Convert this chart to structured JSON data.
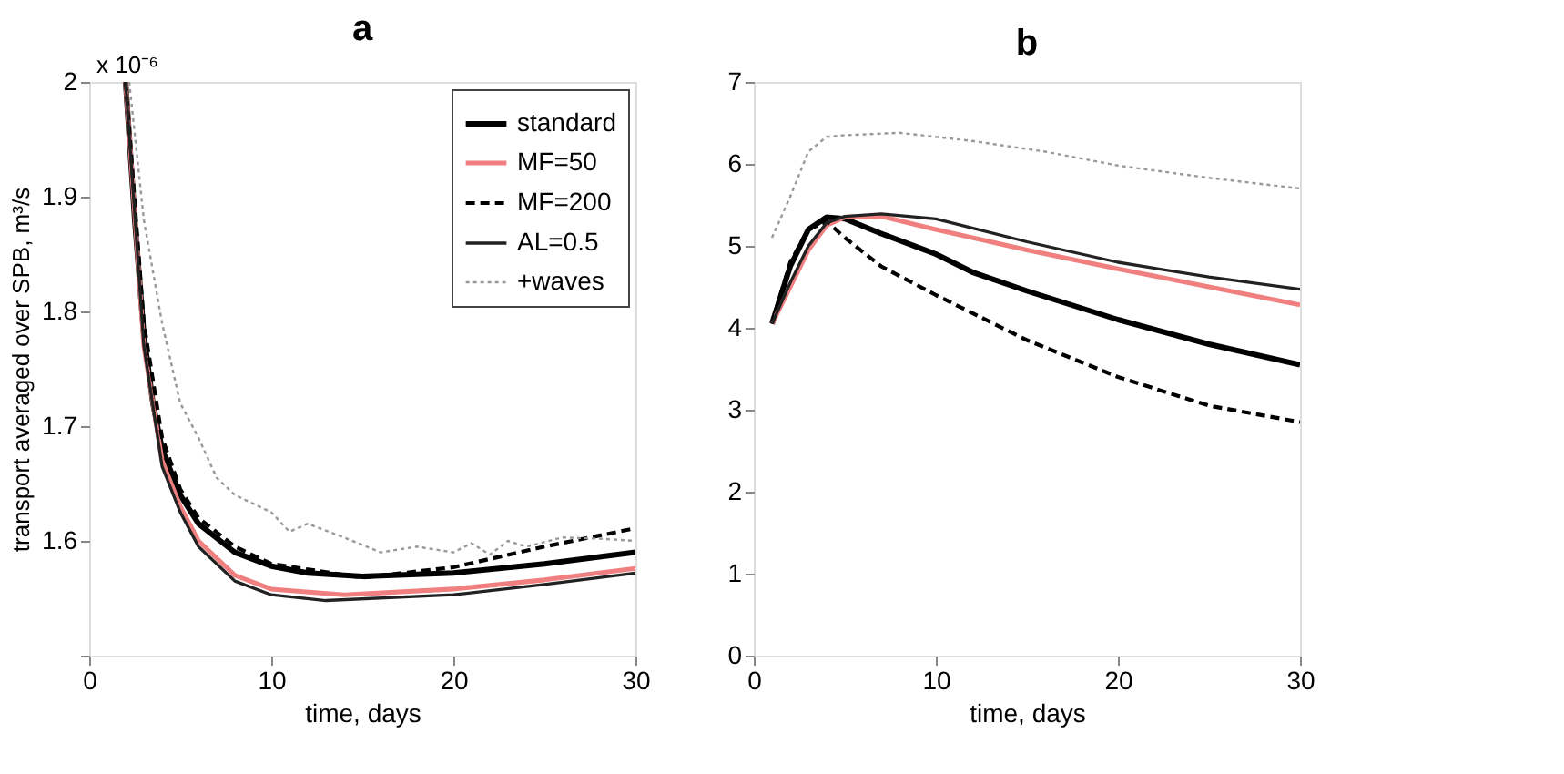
{
  "chart_data": [
    {
      "type": "line",
      "title": "a",
      "xlabel": "time, days",
      "ylabel": "transport averaged over SPB, m³/s",
      "annotations": [
        "x 10⁻⁶"
      ],
      "xlim": [
        0,
        30
      ],
      "xticks": [
        0,
        10,
        20,
        30
      ],
      "ylim": [
        1.5,
        2
      ],
      "yticks": [
        {
          "value": 1.5,
          "label": null
        },
        1.6,
        1.7,
        1.8,
        1.9,
        2
      ],
      "grid": false,
      "legend": "top right",
      "series": [
        {
          "name": "standard",
          "color": "#000000",
          "line_style": "solid",
          "x": [
            2,
            2.5,
            3,
            3.5,
            4,
            5,
            6,
            8,
            10,
            12,
            15,
            20,
            25,
            30
          ],
          "values": [
            2.0,
            1.88,
            1.78,
            1.72,
            1.68,
            1.64,
            1.615,
            1.59,
            1.578,
            1.572,
            1.569,
            1.572,
            1.58,
            1.59
          ]
        },
        {
          "name": "MF=50",
          "color": "#f08080",
          "line_style": "solid",
          "x": [
            2,
            3,
            4,
            5,
            6,
            8,
            10,
            14,
            20,
            25,
            30
          ],
          "values": [
            2.0,
            1.77,
            1.67,
            1.63,
            1.6,
            1.57,
            1.558,
            1.553,
            1.558,
            1.566,
            1.576
          ]
        },
        {
          "name": "MF=200",
          "color": "#000000",
          "line_style": "dashed",
          "x": [
            2,
            3,
            4,
            5,
            6,
            8,
            10,
            15,
            20,
            25,
            30
          ],
          "values": [
            2.0,
            1.79,
            1.69,
            1.645,
            1.62,
            1.595,
            1.58,
            1.568,
            1.577,
            1.595,
            1.611
          ]
        },
        {
          "name": "AL=0.5",
          "color": "#222222",
          "line_style": "solid",
          "x": [
            2,
            3,
            4,
            5,
            6,
            8,
            10,
            13,
            20,
            25,
            30
          ],
          "values": [
            2.0,
            1.77,
            1.665,
            1.625,
            1.595,
            1.565,
            1.553,
            1.548,
            1.553,
            1.562,
            1.572
          ]
        },
        {
          "name": "+waves",
          "color": "#999999",
          "line_style": "dotted",
          "x": [
            2.2,
            3,
            4,
            5,
            6,
            7,
            8,
            10,
            11,
            12,
            14,
            16,
            18,
            20,
            21,
            22,
            23,
            24,
            26,
            28,
            30
          ],
          "values": [
            2.0,
            1.88,
            1.79,
            1.72,
            1.69,
            1.655,
            1.64,
            1.625,
            1.608,
            1.615,
            1.603,
            1.59,
            1.595,
            1.59,
            1.598,
            1.588,
            1.6,
            1.595,
            1.603,
            1.602,
            1.6
          ]
        }
      ]
    },
    {
      "type": "line",
      "title": "b",
      "xlabel": "time, days",
      "xlim": [
        0,
        30
      ],
      "xticks": [
        0,
        10,
        20,
        30
      ],
      "ylim": [
        0,
        7
      ],
      "yticks": [
        0,
        1,
        2,
        3,
        4,
        5,
        6,
        7
      ],
      "grid": false,
      "series": [
        {
          "color": "#000000",
          "line_style": "solid",
          "x": [
            1,
            2,
            3,
            4,
            5,
            7,
            10,
            12,
            15,
            20,
            25,
            30
          ],
          "values": [
            4.05,
            4.75,
            5.2,
            5.35,
            5.33,
            5.15,
            4.9,
            4.68,
            4.45,
            4.1,
            3.8,
            3.55
          ]
        },
        {
          "color": "#f08080",
          "line_style": "solid",
          "x": [
            1,
            2,
            3,
            4,
            5,
            7,
            10,
            15,
            20,
            25,
            30
          ],
          "values": [
            4.05,
            4.5,
            4.95,
            5.25,
            5.35,
            5.36,
            5.2,
            4.95,
            4.72,
            4.5,
            4.28
          ]
        },
        {
          "color": "#000000",
          "line_style": "dashed",
          "x": [
            1,
            2,
            3,
            4,
            5,
            7,
            10,
            15,
            20,
            25,
            30
          ],
          "values": [
            4.05,
            4.8,
            5.2,
            5.3,
            5.1,
            4.75,
            4.4,
            3.85,
            3.4,
            3.05,
            2.85
          ]
        },
        {
          "color": "#222222",
          "line_style": "solid",
          "x": [
            1,
            2,
            3,
            4,
            5,
            7,
            10,
            15,
            20,
            25,
            30
          ],
          "values": [
            4.05,
            4.55,
            5.0,
            5.28,
            5.36,
            5.39,
            5.33,
            5.05,
            4.8,
            4.62,
            4.47
          ]
        },
        {
          "color": "#999999",
          "line_style": "dotted",
          "x": [
            1,
            2,
            3,
            4,
            5,
            8,
            12,
            16,
            20,
            25,
            30
          ],
          "values": [
            5.1,
            5.6,
            6.15,
            6.33,
            6.35,
            6.38,
            6.28,
            6.15,
            5.98,
            5.83,
            5.7
          ]
        }
      ]
    }
  ]
}
